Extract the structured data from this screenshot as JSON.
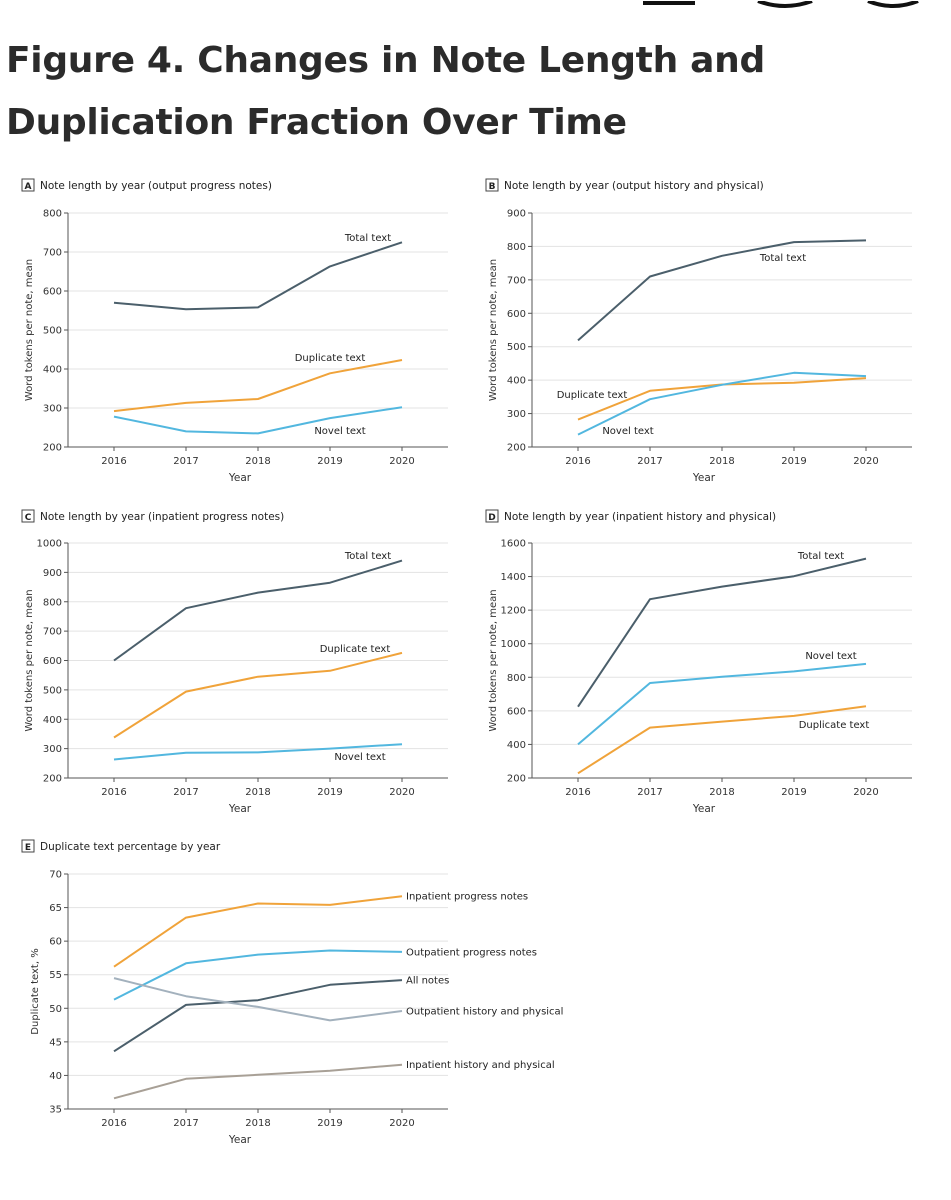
{
  "figure_title": "Figure 4.  Changes in Note Length and Duplication Fraction Over Time",
  "colors": {
    "total": "#4b5f6b",
    "duplicate": "#f0a33a",
    "novel": "#52b7df",
    "gray": "#a3b1bd",
    "taupe": "#a8a096",
    "axis": "#555555"
  },
  "chart_data": [
    {
      "panel": "A",
      "type": "line",
      "title": "Note length by year (output progress notes)",
      "xlabel": "Year",
      "ylabel": "Word tokens per note, mean",
      "x": [
        "2016",
        "2017",
        "2018",
        "2019",
        "2020"
      ],
      "ylim": [
        200,
        800
      ],
      "yticks": [
        200,
        300,
        400,
        500,
        600,
        700,
        800
      ],
      "series": [
        {
          "name": "Total text",
          "color": "total",
          "values": [
            570,
            553,
            558,
            663,
            725
          ]
        },
        {
          "name": "Duplicate text",
          "color": "duplicate",
          "values": [
            292,
            313,
            323,
            389,
            423
          ]
        },
        {
          "name": "Novel text",
          "color": "novel",
          "values": [
            278,
            240,
            235,
            274,
            302
          ]
        }
      ]
    },
    {
      "panel": "B",
      "type": "line",
      "title": "Note length by year (output history and physical)",
      "xlabel": "Year",
      "ylabel": "Word tokens per note, mean",
      "x": [
        "2016",
        "2017",
        "2018",
        "2019",
        "2020"
      ],
      "ylim": [
        200,
        900
      ],
      "yticks": [
        200,
        300,
        400,
        500,
        600,
        700,
        800,
        900
      ],
      "series": [
        {
          "name": "Total text",
          "color": "total",
          "values": [
            519,
            710,
            772,
            813,
            818
          ]
        },
        {
          "name": "Duplicate text",
          "color": "duplicate",
          "values": [
            282,
            368,
            387,
            392,
            406
          ]
        },
        {
          "name": "Novel text",
          "color": "novel",
          "values": [
            237,
            343,
            386,
            422,
            412
          ]
        }
      ]
    },
    {
      "panel": "C",
      "type": "line",
      "title": "Note length by year (inpatient progress notes)",
      "xlabel": "Year",
      "ylabel": "Word tokens per note, mean",
      "x": [
        "2016",
        "2017",
        "2018",
        "2019",
        "2020"
      ],
      "ylim": [
        200,
        1000
      ],
      "yticks": [
        200,
        300,
        400,
        500,
        600,
        700,
        800,
        900,
        1000
      ],
      "series": [
        {
          "name": "Total text",
          "color": "total",
          "values": [
            600,
            778,
            831,
            865,
            940
          ]
        },
        {
          "name": "Duplicate text",
          "color": "duplicate",
          "values": [
            338,
            494,
            545,
            565,
            626
          ]
        },
        {
          "name": "Novel text",
          "color": "novel",
          "values": [
            263,
            286,
            287,
            300,
            315
          ]
        }
      ]
    },
    {
      "panel": "D",
      "type": "line",
      "title": "Note length by year (inpatient history and physical)",
      "xlabel": "Year",
      "ylabel": "Word tokens per note, mean",
      "x": [
        "2016",
        "2017",
        "2018",
        "2019",
        "2020"
      ],
      "ylim": [
        200,
        1600
      ],
      "yticks": [
        200,
        400,
        600,
        800,
        1000,
        1200,
        1400,
        1600
      ],
      "series": [
        {
          "name": "Total text",
          "color": "total",
          "values": [
            625,
            1265,
            1340,
            1402,
            1507
          ]
        },
        {
          "name": "Novel text",
          "color": "novel",
          "values": [
            400,
            766,
            803,
            835,
            880
          ]
        },
        {
          "name": "Duplicate text",
          "color": "duplicate",
          "values": [
            228,
            500,
            536,
            570,
            627
          ]
        }
      ]
    },
    {
      "panel": "E",
      "type": "line",
      "title": "Duplicate text percentage by year",
      "xlabel": "Year",
      "ylabel": "Duplicate text, %",
      "x": [
        "2016",
        "2017",
        "2018",
        "2019",
        "2020"
      ],
      "ylim": [
        35,
        70
      ],
      "yticks": [
        35,
        40,
        45,
        50,
        55,
        60,
        65,
        70
      ],
      "series": [
        {
          "name": "Inpatient progress notes",
          "color": "duplicate",
          "values": [
            56.2,
            63.5,
            65.6,
            65.4,
            66.7
          ]
        },
        {
          "name": "Outpatient progress notes",
          "color": "novel",
          "values": [
            51.3,
            56.7,
            58.0,
            58.6,
            58.4
          ]
        },
        {
          "name": "All notes",
          "color": "total",
          "values": [
            43.6,
            50.5,
            51.2,
            53.5,
            54.2
          ]
        },
        {
          "name": "Outpatient history and physical",
          "color": "gray",
          "values": [
            54.5,
            51.8,
            50.2,
            48.2,
            49.6
          ]
        },
        {
          "name": "Inpatient history and physical",
          "color": "taupe",
          "values": [
            36.6,
            39.5,
            40.1,
            40.7,
            41.6
          ]
        }
      ]
    }
  ]
}
